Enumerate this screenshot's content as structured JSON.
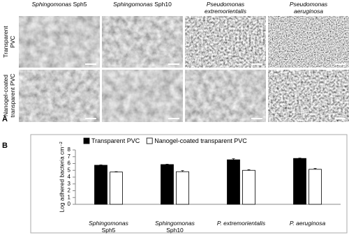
{
  "panel_a": {
    "label": "A",
    "column_headers": [
      [
        "Sphingomonas",
        "Sph5"
      ],
      [
        "Sphingomonas",
        "Sph10"
      ],
      [
        "Pseudomonas",
        "extremorientalis"
      ],
      [
        "Pseudomonas",
        "aeruginosa"
      ]
    ],
    "row_labels": [
      "Transparent\nPVC",
      "Nanogel-coated\ntransparent PVC"
    ]
  },
  "panel_b": {
    "label": "B"
  },
  "chart_data": {
    "type": "bar",
    "y_label": "Log adhered bacteria cm⁻²",
    "categories": [
      "Sphingomonas\nSph5",
      "Sphingomonas\nSph10",
      "P. extremorientalis",
      "P. aeruginosa"
    ],
    "series": [
      {
        "name": "Transparent PVC",
        "color": "#000000",
        "values": [
          5.75,
          5.85,
          6.55,
          6.75
        ],
        "errors": [
          0.05,
          0.05,
          0.15,
          0.05
        ]
      },
      {
        "name": "Nanogel-coated transparent PVC",
        "color": "#ffffff",
        "values": [
          4.75,
          4.8,
          5.0,
          5.15
        ],
        "errors": [
          0.05,
          0.15,
          0.1,
          0.12
        ]
      }
    ],
    "ylim": [
      0,
      8
    ],
    "yticks": [
      0,
      1,
      2,
      3,
      4,
      5,
      6,
      7,
      8
    ],
    "legend": "top-left"
  }
}
